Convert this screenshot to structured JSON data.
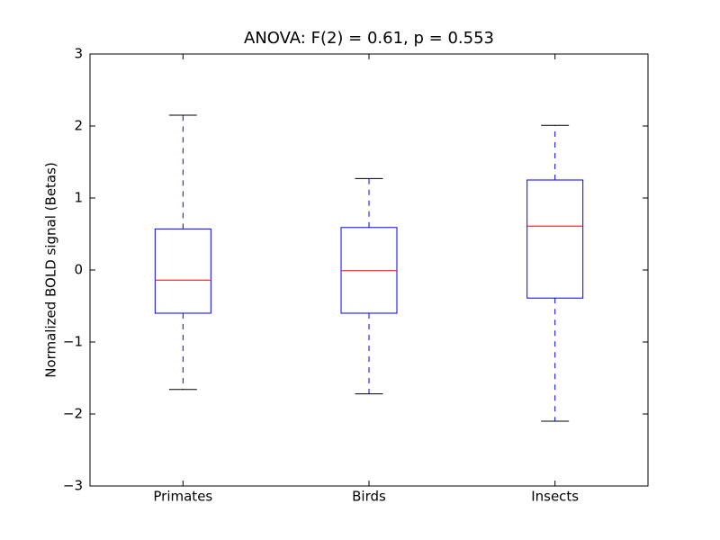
{
  "chart_data": {
    "type": "boxplot",
    "title": "ANOVA: F(2) = 0.61, p = 0.553",
    "ylabel": "Normalized BOLD signal (Betas)",
    "categories": [
      "Primates",
      "Birds",
      "Insects"
    ],
    "boxes": [
      {
        "whislo": -1.66,
        "q1": -0.6,
        "med": -0.14,
        "q3": 0.57,
        "whishi": 2.15
      },
      {
        "whislo": -1.72,
        "q1": -0.6,
        "med": -0.01,
        "q3": 0.59,
        "whishi": 1.27
      },
      {
        "whislo": -2.1,
        "q1": -0.39,
        "med": 0.61,
        "q3": 1.25,
        "whishi": 2.01
      }
    ],
    "box_color": "#0000ff",
    "median_color": "#ff0000",
    "whisker_color": "#0000ff",
    "cap_color": "#000000",
    "ylim": [
      -3,
      3
    ],
    "yticks": [
      {
        "value": -3,
        "label": "−3"
      },
      {
        "value": -2,
        "label": "−2"
      },
      {
        "value": -1,
        "label": "−1"
      },
      0,
      1,
      2,
      3
    ],
    "grid": false
  }
}
